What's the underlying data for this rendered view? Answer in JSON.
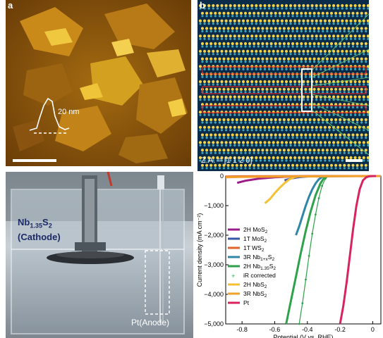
{
  "panel_a": {
    "label": "a",
    "scale_text": "20 nm"
  },
  "panel_b": {
    "label": "b",
    "zone_axis": "Z.A. = [1 1 2 0]"
  },
  "panel_c": {
    "cathode_label_line1": "Nb1.35S2",
    "cathode_label_line2": "(Cathode)",
    "anode_label": "Pt(Anode)"
  },
  "chart_data": {
    "type": "line",
    "ylabel": "Current density (mA cm⁻²)",
    "xlabel": "Potential (V vs. RHE)",
    "xlim": [
      -0.9,
      0.05
    ],
    "ylim": [
      -5000,
      0
    ],
    "xticks": [
      "-0.8",
      "-0.6",
      "-0.4",
      "-0.2",
      "0"
    ],
    "yticks": [
      "0",
      "−1,000",
      "−2,000",
      "−3,000",
      "−4,000",
      "−5,000"
    ],
    "legend_position": "left",
    "series": [
      {
        "name": "2H MoS2",
        "color": "#9c1b8a",
        "x": [
          -0.83,
          -0.78,
          -0.7,
          -0.6,
          -0.5,
          -0.4,
          -0.3,
          -0.2,
          -0.1,
          0.0,
          0.05
        ],
        "y": [
          -230,
          -160,
          -90,
          -40,
          -15,
          -6,
          -3,
          -1,
          0,
          0,
          0
        ]
      },
      {
        "name": "1T MoS2",
        "color": "#3a57a7",
        "x": [
          -0.54,
          -0.5,
          -0.45,
          -0.4,
          -0.3,
          -0.2,
          -0.1,
          0.0,
          0.05
        ],
        "y": [
          -150,
          -80,
          -35,
          -15,
          -5,
          -2,
          0,
          0,
          0
        ]
      },
      {
        "name": "1T WS2",
        "color": "#e0642a",
        "x": [
          -0.9,
          -0.8,
          -0.6,
          -0.4,
          -0.2,
          0.0,
          0.05
        ],
        "y": [
          -20,
          -10,
          -5,
          -3,
          -1,
          0,
          0
        ]
      },
      {
        "name": "3R Nb1+xS2",
        "color": "#2f86a6",
        "x": [
          -0.47,
          -0.45,
          -0.43,
          -0.41,
          -0.39,
          -0.37,
          -0.35,
          -0.33,
          -0.31,
          -0.3
        ],
        "y": [
          -2000,
          -1700,
          -1350,
          -1000,
          -700,
          -450,
          -250,
          -110,
          -30,
          0
        ]
      },
      {
        "name": "2H Nb1.35S2",
        "color": "#2ea14a",
        "x": [
          -0.53,
          -0.5,
          -0.47,
          -0.44,
          -0.41,
          -0.38,
          -0.35,
          -0.32,
          -0.3,
          -0.28
        ],
        "y": [
          -5000,
          -4200,
          -3400,
          -2600,
          -1850,
          -1200,
          -650,
          -250,
          -80,
          0
        ]
      },
      {
        "name": "IR corrected",
        "color": "#2ea14a",
        "x": [
          -0.45,
          -0.43,
          -0.41,
          -0.39,
          -0.37,
          -0.35,
          -0.33,
          -0.31,
          -0.29,
          -0.27
        ],
        "y": [
          -5000,
          -4300,
          -3500,
          -2700,
          -1950,
          -1300,
          -750,
          -330,
          -90,
          0
        ]
      },
      {
        "name": "2H NbS2",
        "color": "#f3c133",
        "x": [
          -0.66,
          -0.63,
          -0.6,
          -0.57,
          -0.54,
          -0.51,
          -0.48,
          -0.45
        ],
        "y": [
          -920,
          -780,
          -580,
          -400,
          -240,
          -110,
          -40,
          -5
        ]
      },
      {
        "name": "3R NbS2",
        "color": "#f0a02b",
        "x": [
          -0.9,
          -0.8,
          -0.6,
          -0.4,
          -0.2,
          0.0,
          0.05
        ],
        "y": [
          -40,
          -30,
          -20,
          -12,
          -6,
          -2,
          0
        ]
      },
      {
        "name": "Pt",
        "color": "#d8245e",
        "x": [
          -0.2,
          -0.18,
          -0.16,
          -0.14,
          -0.12,
          -0.1,
          -0.08,
          -0.06,
          -0.04,
          -0.02,
          0.0,
          0.02
        ],
        "y": [
          -5000,
          -4400,
          -3600,
          -2700,
          -1800,
          -1000,
          -450,
          -150,
          -40,
          -8,
          0,
          0
        ]
      }
    ],
    "legend": [
      {
        "name": "2H MoS",
        "sub": "2",
        "color": "#9c1b8a",
        "style": "line"
      },
      {
        "name": "1T MoS",
        "sub": "2",
        "color": "#3a57a7",
        "style": "line"
      },
      {
        "name": "1T WS",
        "sub": "2",
        "color": "#e0642a",
        "style": "line"
      },
      {
        "name": "3R Nb",
        "sub": "1+x",
        "post": "S",
        "sub2": "2",
        "color": "#2f86a6",
        "style": "line"
      },
      {
        "name": "2H Nb",
        "sub": "1.35",
        "post": "S",
        "sub2": "2",
        "color": "#2ea14a",
        "style": "line"
      },
      {
        "name": "iR corrected",
        "sub": "",
        "color": "#2ea14a",
        "style": "marker"
      },
      {
        "name": "2H NbS",
        "sub": "2",
        "color": "#f3c133",
        "style": "line"
      },
      {
        "name": "3R NbS",
        "sub": "2",
        "color": "#f0a02b",
        "style": "line"
      },
      {
        "name": "Pt",
        "sub": "",
        "color": "#d8245e",
        "style": "line"
      }
    ]
  }
}
